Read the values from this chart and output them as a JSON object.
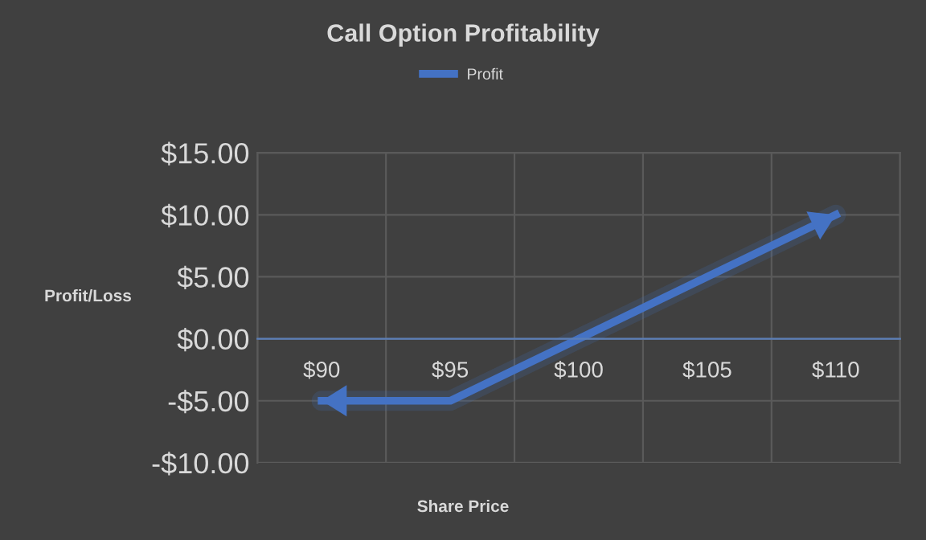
{
  "chart_data": {
    "type": "line",
    "title": "Call Option Profitability",
    "xlabel": "Share Price",
    "ylabel": "Profit/Loss",
    "categories": [
      "$90",
      "$95",
      "$100",
      "$105",
      "$110"
    ],
    "series": [
      {
        "name": "Profit",
        "color": "#4472c4",
        "values": [
          -5,
          -5,
          0,
          5,
          10
        ]
      }
    ],
    "ylim": [
      -10,
      15
    ],
    "yticks": [
      {
        "value": -10,
        "label": "-$10.00"
      },
      {
        "value": -5,
        "label": "-$5.00"
      },
      {
        "value": 0,
        "label": "$0.00"
      },
      {
        "value": 5,
        "label": "$5.00"
      },
      {
        "value": 10,
        "label": "$10.00"
      },
      {
        "value": 15,
        "label": "$15.00"
      }
    ],
    "grid": true,
    "legend": "top",
    "line_style": "solid"
  }
}
